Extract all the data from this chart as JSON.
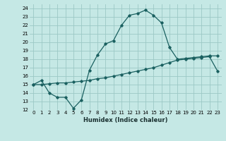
{
  "title": "",
  "xlabel": "Humidex (Indice chaleur)",
  "ylabel": "",
  "bg_color": "#c5e8e5",
  "grid_color": "#9cc8c5",
  "line_color": "#1a6060",
  "xlim": [
    -0.5,
    23.5
  ],
  "ylim": [
    12,
    24.5
  ],
  "xticks": [
    0,
    1,
    2,
    3,
    4,
    5,
    6,
    7,
    8,
    9,
    10,
    11,
    12,
    13,
    14,
    15,
    16,
    17,
    18,
    19,
    20,
    21,
    22,
    23
  ],
  "yticks": [
    12,
    13,
    14,
    15,
    16,
    17,
    18,
    19,
    20,
    21,
    22,
    23,
    24
  ],
  "line1_x": [
    0,
    1,
    2,
    3,
    4,
    5,
    6,
    7,
    8,
    9,
    10,
    11,
    12,
    13,
    14,
    15,
    16,
    17,
    18,
    19,
    20,
    21,
    22,
    23
  ],
  "line1_y": [
    15.0,
    15.5,
    14.0,
    13.5,
    13.5,
    12.2,
    13.2,
    16.7,
    18.5,
    19.8,
    20.2,
    22.0,
    23.2,
    23.4,
    23.8,
    23.2,
    22.3,
    19.4,
    18.0,
    18.1,
    18.2,
    18.3,
    18.4,
    18.4
  ],
  "line2_x": [
    0,
    1,
    2,
    3,
    4,
    5,
    6,
    7,
    8,
    9,
    10,
    11,
    12,
    13,
    14,
    15,
    16,
    17,
    18,
    19,
    20,
    21,
    22,
    23
  ],
  "line2_y": [
    15.0,
    15.0,
    15.1,
    15.2,
    15.2,
    15.3,
    15.4,
    15.5,
    15.7,
    15.8,
    16.0,
    16.2,
    16.4,
    16.6,
    16.8,
    17.0,
    17.3,
    17.6,
    17.9,
    18.0,
    18.1,
    18.2,
    18.3,
    16.6
  ]
}
